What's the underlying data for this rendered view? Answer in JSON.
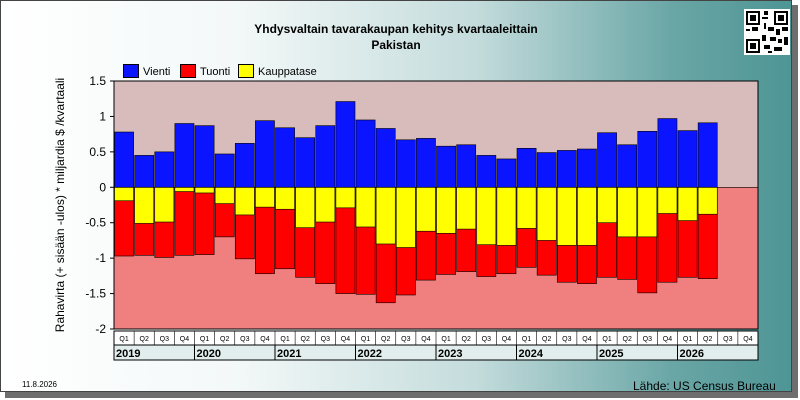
{
  "colors": {
    "vienti": "#0a14ff",
    "tuonti": "#ff0000",
    "kauppatase": "#ffff00",
    "positive_bg": "#d8bcbc",
    "negative_bg": "#f08080"
  },
  "qr_icon": "qr-code-icon",
  "footer": {
    "date": "11.8.2026",
    "source": "Lähde: US Census Bureau"
  },
  "chart_data": {
    "type": "bar",
    "title": "Yhdysvaltain tavarakaupan kehitys kvartaaleittain",
    "subtitle": "Pakistan",
    "ylabel": "Rahavirta (+ sisään -ulos)  * miljardia $ /kvartaali",
    "xlabel": "",
    "ylim": [
      -2,
      1.5
    ],
    "yticks": [
      1.5,
      1,
      0.5,
      0,
      -0.5,
      -1,
      -1.5,
      -2
    ],
    "ytick_labels": [
      "1.5",
      "1",
      "0.5",
      "0",
      "-0.5",
      "-1",
      "-1.5",
      "-2"
    ],
    "legend": [
      "Vienti",
      "Tuonti",
      "Kauppatase"
    ],
    "legend_position": "top-left",
    "categories": [
      "Q1",
      "Q2",
      "Q3",
      "Q4",
      "Q1",
      "Q2",
      "Q3",
      "Q4",
      "Q1",
      "Q2",
      "Q3",
      "Q4",
      "Q1",
      "Q2",
      "Q3",
      "Q4",
      "Q1",
      "Q2",
      "Q3",
      "Q4",
      "Q1",
      "Q2",
      "Q3",
      "Q4",
      "Q1",
      "Q2",
      "Q3",
      "Q4",
      "Q1",
      "Q2",
      "Q3",
      "Q4"
    ],
    "years": [
      "2019",
      "2020",
      "2021",
      "2022",
      "2023",
      "2024",
      "2025",
      "2026"
    ],
    "series": [
      {
        "name": "Vienti",
        "values": [
          0.78,
          0.45,
          0.5,
          0.9,
          0.87,
          0.47,
          0.62,
          0.94,
          0.84,
          0.7,
          0.87,
          1.21,
          0.95,
          0.83,
          0.67,
          0.69,
          0.58,
          0.6,
          0.45,
          0.4,
          0.55,
          0.49,
          0.52,
          0.54,
          0.77,
          0.6,
          0.79,
          0.97,
          0.8,
          0.91,
          null,
          null
        ]
      },
      {
        "name": "Tuonti",
        "values": [
          -0.97,
          -0.96,
          -0.99,
          -0.96,
          -0.95,
          -0.7,
          -1.01,
          -1.22,
          -1.15,
          -1.27,
          -1.36,
          -1.5,
          -1.51,
          -1.63,
          -1.52,
          -1.31,
          -1.23,
          -1.19,
          -1.26,
          -1.22,
          -1.13,
          -1.24,
          -1.34,
          -1.36,
          -1.27,
          -1.3,
          -1.49,
          -1.34,
          -1.27,
          -1.29,
          null,
          null
        ]
      },
      {
        "name": "Kauppatase",
        "values": [
          -0.19,
          -0.51,
          -0.49,
          -0.06,
          -0.08,
          -0.23,
          -0.39,
          -0.28,
          -0.31,
          -0.57,
          -0.49,
          -0.29,
          -0.56,
          -0.8,
          -0.85,
          -0.62,
          -0.65,
          -0.59,
          -0.81,
          -0.82,
          -0.58,
          -0.75,
          -0.82,
          -0.82,
          -0.5,
          -0.7,
          -0.7,
          -0.37,
          -0.47,
          -0.38,
          null,
          null
        ]
      }
    ],
    "grid": false
  }
}
